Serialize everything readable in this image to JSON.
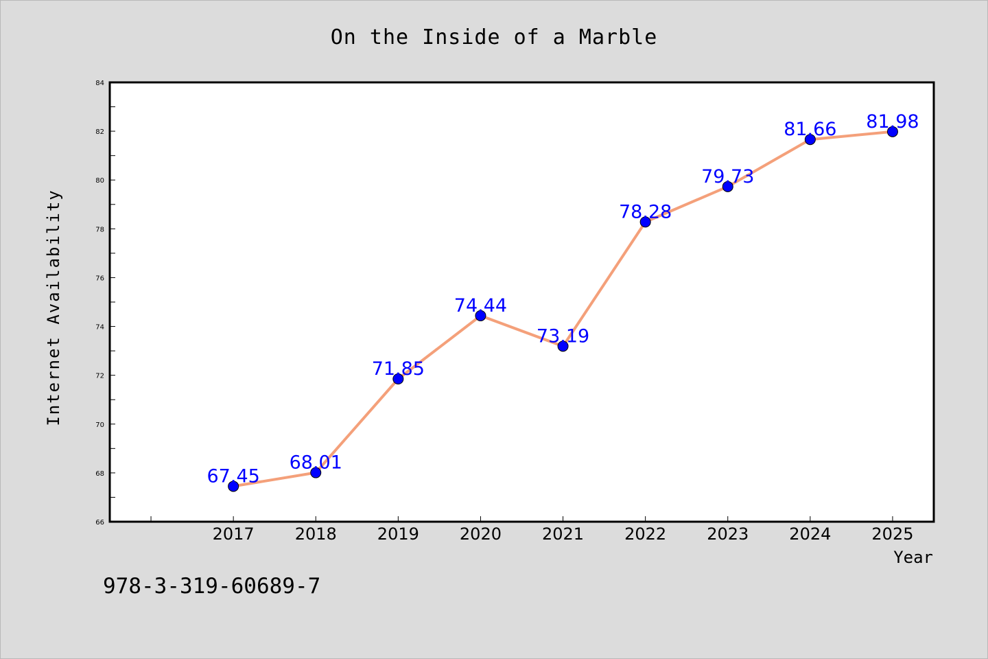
{
  "chart_data": {
    "type": "line",
    "title": "On the Inside of a Marble",
    "xlabel": "Year",
    "ylabel": "Internet Availability",
    "x": [
      "2017",
      "2018",
      "2019",
      "2020",
      "2021",
      "2022",
      "2023",
      "2024",
      "2025"
    ],
    "series": [
      {
        "values": [
          67.45,
          68.01,
          71.85,
          74.44,
          73.19,
          78.28,
          79.73,
          81.66,
          81.98
        ],
        "line_color": "#f4a07a",
        "marker_color": "#0000ff"
      }
    ],
    "data_labels": [
      "67.45",
      "68.01",
      "71.85",
      "74.44",
      "73.19",
      "78.28",
      "79.73",
      "81.66",
      "81.98"
    ],
    "ylim": [
      66,
      84
    ],
    "y_ticks": [
      "66",
      "68",
      "70",
      "72",
      "74",
      "76",
      "78",
      "80",
      "82",
      "84"
    ],
    "x_range": [
      2015.5,
      2025.5
    ],
    "grid": false,
    "label_color": "#0000ff",
    "background_color": "#dcdcdc",
    "plot_background": "#ffffff"
  },
  "footer_text": "978-3-319-60689-7"
}
